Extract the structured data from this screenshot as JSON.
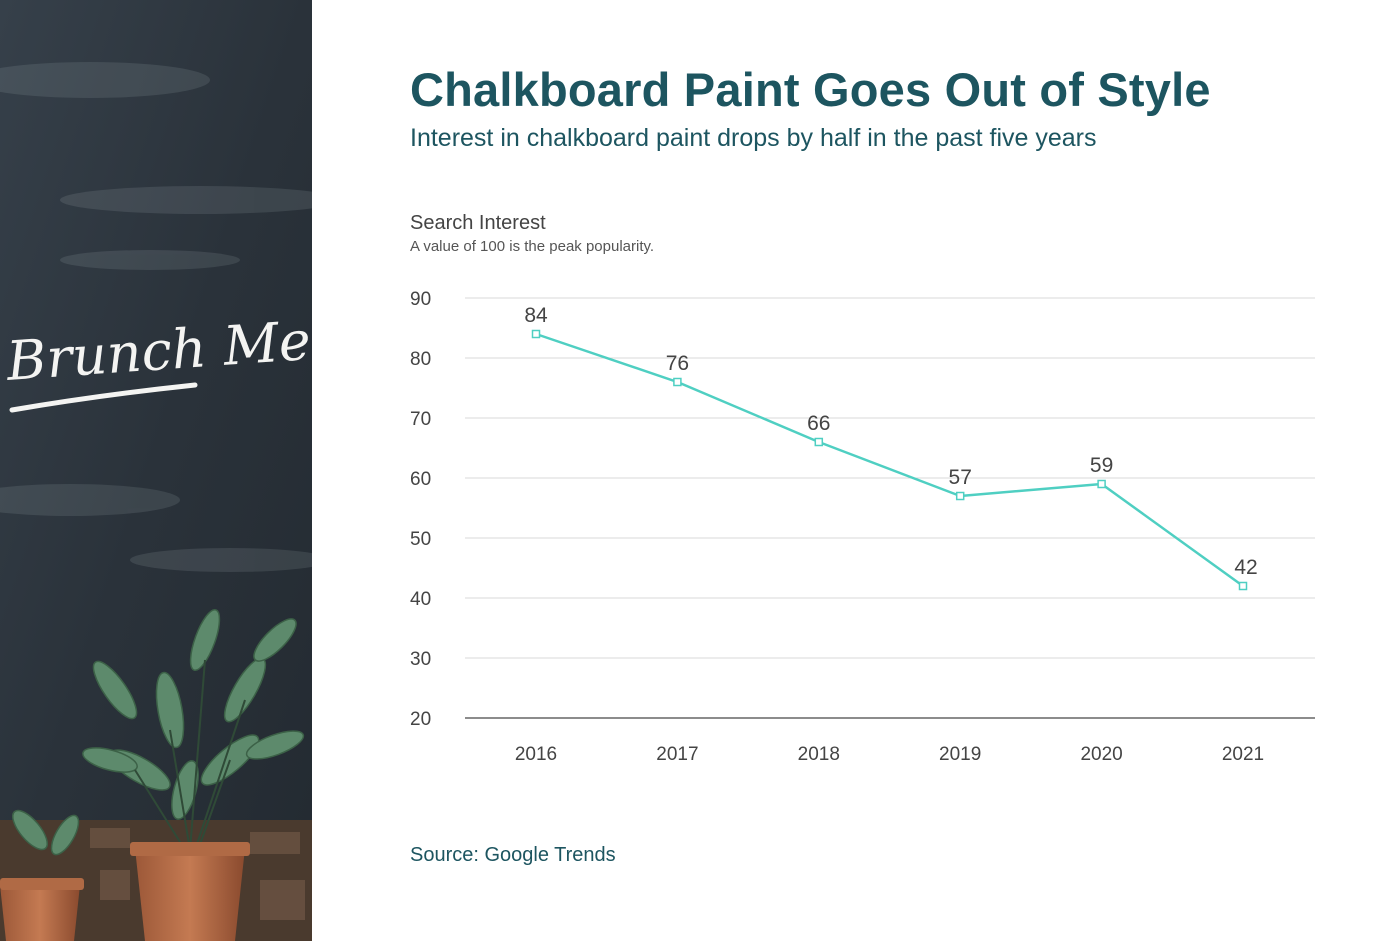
{
  "title": "Chalkboard Paint Goes Out of Style",
  "subtitle": "Interest in chalkboard paint drops by half in the past five years",
  "source": "Source: Google Trends",
  "photo": {
    "chalk_text": "Brunch Menu"
  },
  "colors": {
    "title": "#1d5560",
    "line": "#4fcfc2",
    "grid": "#d9d9d9",
    "axis": "#666666",
    "chalkboard": "#2b333b"
  },
  "chart_data": {
    "type": "line",
    "ylabel": "Search Interest",
    "ylabel_note": "A value of 100 is the peak popularity.",
    "xlabel": "",
    "categories": [
      "2016",
      "2017",
      "2018",
      "2019",
      "2020",
      "2021"
    ],
    "series": [
      {
        "values": [
          84,
          76,
          66,
          57,
          59,
          42
        ]
      }
    ],
    "ylim": [
      20,
      90
    ],
    "yticks": [
      20,
      30,
      40,
      50,
      60,
      70,
      80,
      90
    ],
    "grid": true,
    "legend": "none"
  }
}
